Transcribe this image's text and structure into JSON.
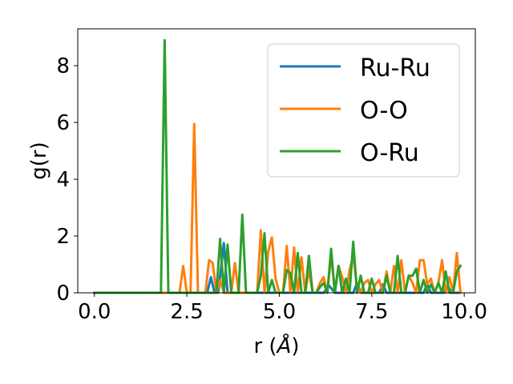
{
  "chart_data": {
    "type": "line",
    "xlabel_text": "r (",
    "xlabel_unit": "Å",
    "xlabel_close": ")",
    "ylabel": "g(r)",
    "xlim": [
      -0.45,
      10.3
    ],
    "ylim": [
      0,
      9.3
    ],
    "xticks": [
      0,
      2.5,
      5,
      7.5,
      10
    ],
    "xtick_labels": [
      "0.0",
      "2.5",
      "5.0",
      "7.5",
      "10.0"
    ],
    "yticks": [
      0,
      2,
      4,
      6,
      8
    ],
    "ytick_labels": [
      "0",
      "2",
      "4",
      "6",
      "8"
    ],
    "grid": false,
    "legend_position": "upper-right",
    "series": [
      {
        "name": "Ru-Ru",
        "color": "#1f77b4",
        "x": [
          0.0,
          3.05,
          3.15,
          3.25,
          3.35,
          3.5,
          3.6,
          3.7,
          6.2,
          6.35,
          6.5,
          7.0,
          7.1,
          7.2,
          7.7,
          7.8,
          7.9,
          8.9,
          9.0,
          9.1,
          9.45,
          9.55,
          9.65,
          9.9
        ],
        "values": [
          0.0,
          0.0,
          0.55,
          0.0,
          0.0,
          1.75,
          0.0,
          0.0,
          0.0,
          0.25,
          0.0,
          0.0,
          0.35,
          0.0,
          0.0,
          0.3,
          0.0,
          0.0,
          0.3,
          0.0,
          0.0,
          0.25,
          0.0,
          0.0
        ]
      },
      {
        "name": "O-O",
        "color": "#ff7f0e",
        "x": [
          0.0,
          2.3,
          2.4,
          2.5,
          2.6,
          2.7,
          2.8,
          3.0,
          3.1,
          3.2,
          3.3,
          3.4,
          3.5,
          3.7,
          3.8,
          3.9,
          4.0,
          4.4,
          4.5,
          4.6,
          4.7,
          4.8,
          4.9,
          5.0,
          5.1,
          5.2,
          5.3,
          5.4,
          5.5,
          5.6,
          5.7,
          5.8,
          5.9,
          6.0,
          6.1,
          6.2,
          6.3,
          6.4,
          6.5,
          6.6,
          6.7,
          6.8,
          6.9,
          7.0,
          7.1,
          7.2,
          7.3,
          7.4,
          7.5,
          7.6,
          7.7,
          7.8,
          7.9,
          8.0,
          8.1,
          8.2,
          8.3,
          8.4,
          8.5,
          8.6,
          8.7,
          8.8,
          8.9,
          9.0,
          9.1,
          9.2,
          9.3,
          9.4,
          9.5,
          9.6,
          9.7,
          9.8,
          9.9
        ],
        "values": [
          0.0,
          0.0,
          0.95,
          0.0,
          0.0,
          5.95,
          0.0,
          0.0,
          1.15,
          1.05,
          0.0,
          0.45,
          0.0,
          0.0,
          1.05,
          0.0,
          0.0,
          0.0,
          2.2,
          0.0,
          1.45,
          1.95,
          0.5,
          0.0,
          0.0,
          1.65,
          0.0,
          1.6,
          0.0,
          1.25,
          0.0,
          0.8,
          0.0,
          0.0,
          0.35,
          0.55,
          0.0,
          1.35,
          0.0,
          0.95,
          0.55,
          0.0,
          0.8,
          1.3,
          0.25,
          0.0,
          0.35,
          0.45,
          0.0,
          0.3,
          0.45,
          0.0,
          0.75,
          0.0,
          0.95,
          0.0,
          1.15,
          0.0,
          0.6,
          0.35,
          0.0,
          1.15,
          1.15,
          0.3,
          0.5,
          0.0,
          0.35,
          1.15,
          0.0,
          0.55,
          0.0,
          1.4,
          0.0
        ]
      },
      {
        "name": "O-Ru",
        "color": "#2ca02c",
        "x": [
          0.0,
          1.8,
          1.9,
          2.0,
          3.3,
          3.4,
          3.5,
          3.6,
          3.7,
          3.8,
          3.9,
          4.0,
          4.1,
          4.2,
          4.3,
          4.4,
          4.5,
          4.6,
          4.7,
          4.8,
          4.9,
          5.0,
          5.1,
          5.2,
          5.3,
          5.4,
          5.5,
          5.6,
          5.7,
          5.8,
          5.9,
          6.0,
          6.1,
          6.2,
          6.3,
          6.4,
          6.5,
          6.6,
          6.7,
          6.8,
          6.9,
          7.0,
          7.1,
          7.2,
          7.3,
          7.4,
          7.5,
          7.6,
          7.7,
          7.8,
          7.9,
          8.0,
          8.1,
          8.2,
          8.3,
          8.4,
          8.5,
          8.6,
          8.7,
          8.8,
          8.9,
          9.0,
          9.1,
          9.2,
          9.3,
          9.4,
          9.5,
          9.6,
          9.7,
          9.8,
          9.9
        ],
        "values": [
          0.0,
          0.0,
          8.9,
          0.0,
          0.0,
          1.9,
          0.0,
          1.7,
          0.0,
          0.0,
          0.0,
          2.75,
          0.0,
          0.0,
          0.0,
          0.0,
          0.6,
          2.1,
          0.0,
          0.45,
          0.0,
          0.0,
          0.0,
          0.8,
          0.7,
          0.0,
          1.4,
          0.0,
          0.0,
          1.3,
          0.0,
          0.0,
          0.2,
          0.35,
          0.0,
          1.55,
          0.0,
          0.95,
          0.0,
          0.5,
          0.0,
          1.8,
          0.0,
          0.6,
          0.0,
          0.0,
          0.5,
          0.0,
          0.0,
          0.0,
          0.6,
          0.0,
          0.0,
          1.3,
          0.0,
          0.0,
          0.6,
          0.6,
          0.85,
          0.0,
          0.45,
          0.0,
          0.3,
          0.0,
          0.35,
          0.0,
          0.75,
          0.0,
          0.0,
          0.75,
          0.95
        ]
      }
    ]
  }
}
